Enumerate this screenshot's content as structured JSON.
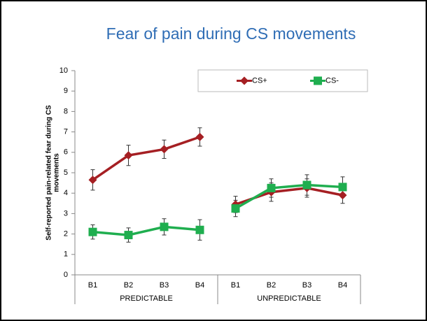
{
  "chart_data": {
    "type": "line",
    "title": "Fear of pain during CS movements",
    "ylabel": [
      "Self-reported pain-related fear during CS",
      "movements"
    ],
    "groups": [
      {
        "name": "PREDICTABLE",
        "categories": [
          "B1",
          "B2",
          "B3",
          "B4"
        ]
      },
      {
        "name": "UNPREDICTABLE",
        "categories": [
          "B1",
          "B2",
          "B3",
          "B4"
        ]
      }
    ],
    "series": [
      {
        "name": "CS+",
        "color": "#a51f23",
        "marker": "diamond",
        "values": [
          [
            4.65,
            5.85,
            6.15,
            6.75
          ],
          [
            3.45,
            4.05,
            4.25,
            3.9
          ]
        ],
        "errors": [
          [
            0.5,
            0.5,
            0.45,
            0.45
          ],
          [
            0.4,
            0.45,
            0.45,
            0.4
          ]
        ]
      },
      {
        "name": "CS-",
        "color": "#1fae4f",
        "marker": "square",
        "values": [
          [
            2.1,
            1.95,
            2.35,
            2.2
          ],
          [
            3.25,
            4.25,
            4.4,
            4.3
          ]
        ],
        "errors": [
          [
            0.35,
            0.35,
            0.4,
            0.5
          ],
          [
            0.4,
            0.45,
            0.5,
            0.5
          ]
        ]
      }
    ],
    "ylim": [
      0,
      10
    ],
    "yticks": [
      0,
      1,
      2,
      3,
      4,
      5,
      6,
      7,
      8,
      9,
      10
    ],
    "grid": false,
    "legend": "top-right"
  }
}
